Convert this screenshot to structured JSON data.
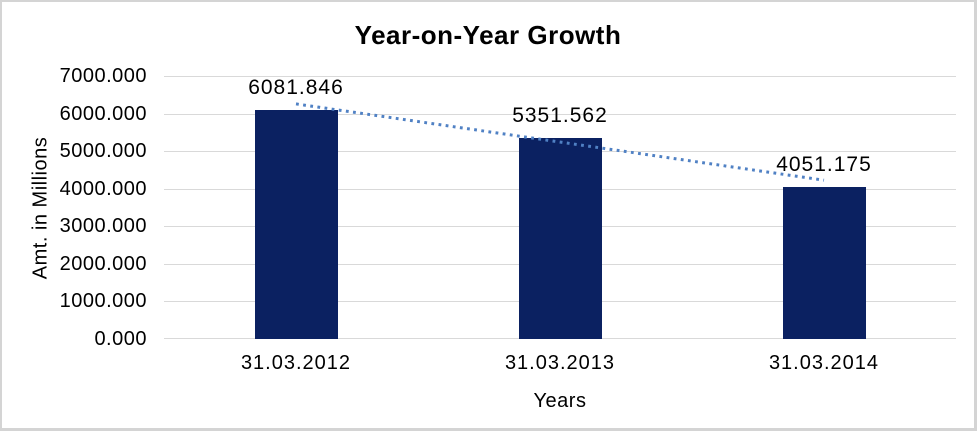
{
  "chart_data": {
    "type": "bar",
    "title": "Year-on-Year Growth",
    "xlabel": "Years",
    "ylabel": "Amt. in Millions",
    "categories": [
      "31.03.2012",
      "31.03.2013",
      "31.03.2014"
    ],
    "values": [
      6081.846,
      5351.562,
      4051.175
    ],
    "data_labels": [
      "6081.846",
      "5351.562",
      "4051.175"
    ],
    "ylim": [
      0,
      7000
    ],
    "ytick_step": 1000,
    "ytick_labels": [
      "0.000",
      "1000.000",
      "2000.000",
      "3000.000",
      "4000.000",
      "5000.000",
      "6000.000",
      "7000.000"
    ],
    "grid": true,
    "legend": "none",
    "trendline": {
      "type": "linear",
      "style": "dotted"
    },
    "colors": {
      "bar": "#0b2161",
      "trendline": "#5081c4",
      "gridline": "#d9d9d9",
      "text": "#000000",
      "frame_border": "#d4d4d4",
      "background": "#ffffff"
    }
  }
}
